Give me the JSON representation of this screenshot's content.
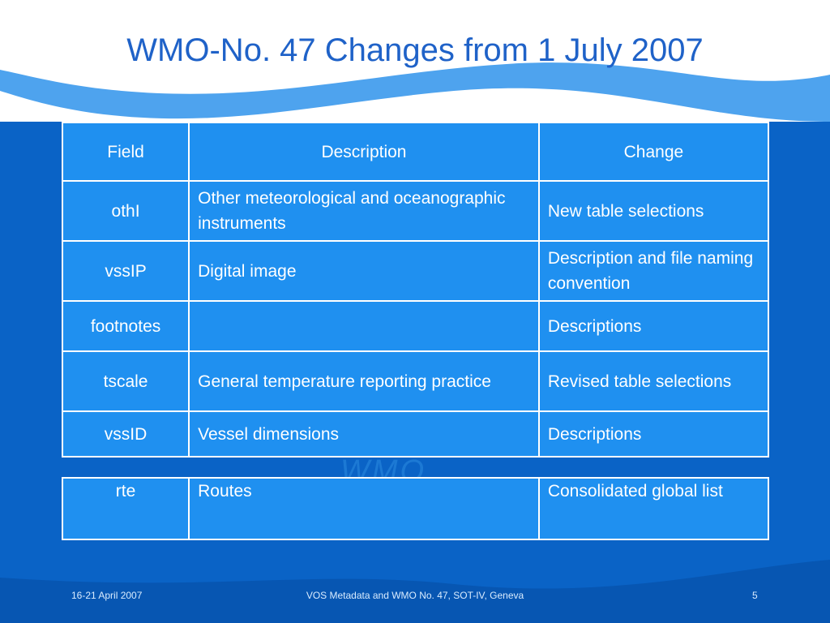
{
  "slide": {
    "title": "WMO-No. 47 Changes from 1 July 2007"
  },
  "main_table": {
    "headers": [
      "Field",
      "Description",
      "Change"
    ],
    "rows": [
      {
        "field": "othI",
        "description": "Other meteorological and oceanographic instruments",
        "change": "New table selections"
      },
      {
        "field": "vssIP",
        "description": "Digital image",
        "change": "Description and file naming convention"
      },
      {
        "field": "footnotes",
        "description": "",
        "change": "Descriptions"
      },
      {
        "field": "tscale",
        "description": "General temperature reporting practice",
        "change": "Revised table selections"
      },
      {
        "field": "vssID",
        "description": "Vessel dimensions",
        "change": "Descriptions"
      }
    ]
  },
  "extra_table": {
    "rows": [
      {
        "field": "rte",
        "description": "Routes",
        "change": "Consolidated global list"
      }
    ]
  },
  "footer": {
    "date": "16-21 April 2007",
    "event": "VOS Metadata and WMO No. 47, SOT-IV, Geneva",
    "page": "5"
  },
  "colors": {
    "background": "#0a63c6",
    "table_fill": "#1f90f0",
    "title": "#1f62c8"
  }
}
